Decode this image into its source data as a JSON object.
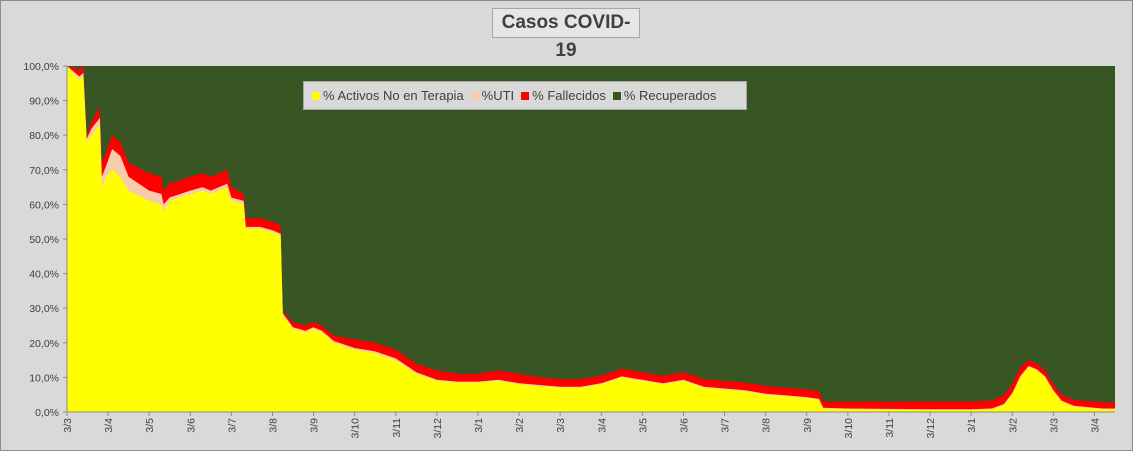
{
  "chart_data": {
    "type": "area",
    "stacked_percent": true,
    "title": "Casos  COVID-19",
    "y_ticks": [
      "0,0%",
      "10,0%",
      "20,0%",
      "30,0%",
      "40,0%",
      "50,0%",
      "60,0%",
      "70,0%",
      "80,0%",
      "90,0%",
      "100,0%"
    ],
    "ylim": [
      0,
      100
    ],
    "x_ticks": [
      "3/3",
      "3/4",
      "3/5",
      "3/6",
      "3/7",
      "3/8",
      "3/9",
      "3/10",
      "3/11",
      "3/12",
      "3/1",
      "3/2",
      "3/3",
      "3/4",
      "3/5",
      "3/6",
      "3/7",
      "3/8",
      "3/9",
      "3/10",
      "3/11",
      "3/12",
      "3/1",
      "3/2",
      "3/3",
      "3/4"
    ],
    "legend_position": "top-center",
    "series": [
      {
        "name": "% Activos No en Terapia",
        "color": "#ffff00",
        "points": [
          [
            0,
            100
          ],
          [
            0.3,
            96
          ],
          [
            0.4,
            97
          ],
          [
            0.48,
            78
          ],
          [
            0.6,
            80
          ],
          [
            0.8,
            83
          ],
          [
            0.85,
            65
          ],
          [
            0.95,
            68
          ],
          [
            1.1,
            70
          ],
          [
            1.3,
            68
          ],
          [
            1.5,
            64
          ],
          [
            2,
            61
          ],
          [
            2.3,
            60
          ],
          [
            2.35,
            58
          ],
          [
            2.5,
            61
          ],
          [
            3,
            63
          ],
          [
            3.3,
            64
          ],
          [
            3.5,
            63
          ],
          [
            3.7,
            64
          ],
          [
            3.9,
            65
          ],
          [
            4,
            61
          ],
          [
            4.3,
            60
          ],
          [
            4.35,
            53
          ],
          [
            4.7,
            53
          ],
          [
            5,
            52
          ],
          [
            5.2,
            51
          ],
          [
            5.25,
            28
          ],
          [
            5.5,
            24
          ],
          [
            5.8,
            23
          ],
          [
            6,
            24
          ],
          [
            6.2,
            23
          ],
          [
            6.5,
            20
          ],
          [
            7,
            18
          ],
          [
            7.5,
            17
          ],
          [
            8,
            15
          ],
          [
            8.5,
            11
          ],
          [
            9,
            9
          ],
          [
            9.5,
            8.5
          ],
          [
            10,
            8.5
          ],
          [
            10.5,
            9
          ],
          [
            11,
            8
          ],
          [
            11.5,
            7.5
          ],
          [
            12,
            7
          ],
          [
            12.5,
            7
          ],
          [
            13,
            8
          ],
          [
            13.5,
            10
          ],
          [
            14,
            9
          ],
          [
            14.5,
            8
          ],
          [
            15,
            9
          ],
          [
            15.5,
            7
          ],
          [
            16,
            6.5
          ],
          [
            16.5,
            6
          ],
          [
            17,
            5
          ],
          [
            17.5,
            4.5
          ],
          [
            18,
            4
          ],
          [
            18.3,
            3.5
          ],
          [
            18.4,
            1
          ],
          [
            19,
            0.8
          ],
          [
            20,
            0.7
          ],
          [
            21,
            0.6
          ],
          [
            22,
            0.6
          ],
          [
            22.5,
            0.8
          ],
          [
            22.8,
            2
          ],
          [
            23,
            5
          ],
          [
            23.2,
            10
          ],
          [
            23.4,
            13
          ],
          [
            23.6,
            12
          ],
          [
            23.8,
            10
          ],
          [
            24,
            6
          ],
          [
            24.2,
            3
          ],
          [
            24.5,
            1.5
          ],
          [
            25,
            1
          ],
          [
            25.5,
            0.8
          ],
          [
            25.2,
            0.8
          ]
        ]
      },
      {
        "name": "%UTI",
        "color": "#f8cbad",
        "points": [
          [
            0,
            100
          ],
          [
            0.3,
            97
          ],
          [
            0.4,
            98
          ],
          [
            0.48,
            79
          ],
          [
            0.6,
            82
          ],
          [
            0.8,
            85
          ],
          [
            0.85,
            68
          ],
          [
            0.95,
            71
          ],
          [
            1.1,
            76
          ],
          [
            1.3,
            74
          ],
          [
            1.5,
            68
          ],
          [
            2,
            64
          ],
          [
            2.3,
            63
          ],
          [
            2.35,
            60
          ],
          [
            2.5,
            62
          ],
          [
            3,
            64
          ],
          [
            3.3,
            65
          ],
          [
            3.5,
            64
          ],
          [
            3.7,
            65
          ],
          [
            3.9,
            66
          ],
          [
            4,
            62
          ],
          [
            4.3,
            61
          ],
          [
            4.35,
            53.5
          ],
          [
            4.7,
            53.5
          ],
          [
            5,
            52.5
          ],
          [
            5.2,
            51.5
          ],
          [
            5.25,
            28.5
          ],
          [
            5.5,
            24.5
          ],
          [
            5.8,
            23.5
          ],
          [
            6,
            24.5
          ],
          [
            6.2,
            23.5
          ],
          [
            6.5,
            20.5
          ],
          [
            7,
            18.5
          ],
          [
            7.5,
            17.5
          ],
          [
            8,
            15.5
          ],
          [
            8.5,
            11.5
          ],
          [
            9,
            9.3
          ],
          [
            9.5,
            8.8
          ],
          [
            10,
            8.8
          ],
          [
            10.5,
            9.3
          ],
          [
            11,
            8.3
          ],
          [
            11.5,
            7.8
          ],
          [
            12,
            7.3
          ],
          [
            12.5,
            7.3
          ],
          [
            13,
            8.3
          ],
          [
            13.5,
            10.3
          ],
          [
            14,
            9.3
          ],
          [
            14.5,
            8.3
          ],
          [
            15,
            9.3
          ],
          [
            15.5,
            7.3
          ],
          [
            16,
            6.8
          ],
          [
            16.5,
            6.3
          ],
          [
            17,
            5.3
          ],
          [
            17.5,
            4.8
          ],
          [
            18,
            4.3
          ],
          [
            18.3,
            3.8
          ],
          [
            18.4,
            1.2
          ],
          [
            19,
            1
          ],
          [
            20,
            0.9
          ],
          [
            21,
            0.8
          ],
          [
            22,
            0.8
          ],
          [
            22.5,
            1
          ],
          [
            22.8,
            2.3
          ],
          [
            23,
            5.5
          ],
          [
            23.2,
            10.5
          ],
          [
            23.4,
            13.3
          ],
          [
            23.6,
            12.3
          ],
          [
            23.8,
            10.3
          ],
          [
            24,
            6.3
          ],
          [
            24.2,
            3.3
          ],
          [
            24.5,
            1.8
          ],
          [
            25,
            1.2
          ],
          [
            25.5,
            1
          ],
          [
            25.2,
            1
          ]
        ]
      },
      {
        "name": "% Fallecidos",
        "color": "#ff0000",
        "points": [
          [
            0,
            100
          ],
          [
            0.3,
            99
          ],
          [
            0.4,
            100
          ],
          [
            0.48,
            80
          ],
          [
            0.6,
            84
          ],
          [
            0.8,
            88
          ],
          [
            0.85,
            72
          ],
          [
            0.95,
            75
          ],
          [
            1.1,
            80
          ],
          [
            1.3,
            78
          ],
          [
            1.5,
            72
          ],
          [
            2,
            69
          ],
          [
            2.3,
            68
          ],
          [
            2.35,
            64
          ],
          [
            2.5,
            66
          ],
          [
            3,
            68
          ],
          [
            3.3,
            69
          ],
          [
            3.5,
            68
          ],
          [
            3.7,
            69
          ],
          [
            3.9,
            70
          ],
          [
            4,
            65
          ],
          [
            4.3,
            63
          ],
          [
            4.35,
            56
          ],
          [
            4.7,
            56
          ],
          [
            5,
            55
          ],
          [
            5.2,
            54
          ],
          [
            5.25,
            29
          ],
          [
            5.5,
            26
          ],
          [
            5.8,
            25
          ],
          [
            6,
            26
          ],
          [
            6.2,
            25
          ],
          [
            6.5,
            22
          ],
          [
            7,
            21
          ],
          [
            7.5,
            20
          ],
          [
            8,
            18
          ],
          [
            8.5,
            14
          ],
          [
            9,
            12
          ],
          [
            9.5,
            11
          ],
          [
            10,
            11
          ],
          [
            10.5,
            12
          ],
          [
            11,
            11
          ],
          [
            11.5,
            10
          ],
          [
            12,
            9.5
          ],
          [
            12.5,
            9.5
          ],
          [
            13,
            10.5
          ],
          [
            13.5,
            12.5
          ],
          [
            14,
            11.5
          ],
          [
            14.5,
            10.5
          ],
          [
            15,
            11.5
          ],
          [
            15.5,
            9.5
          ],
          [
            16,
            9
          ],
          [
            16.5,
            8.5
          ],
          [
            17,
            7.5
          ],
          [
            17.5,
            7
          ],
          [
            18,
            6.5
          ],
          [
            18.3,
            6
          ],
          [
            18.4,
            3
          ],
          [
            19,
            3
          ],
          [
            20,
            3
          ],
          [
            21,
            3
          ],
          [
            22,
            3
          ],
          [
            22.5,
            3.3
          ],
          [
            22.8,
            5
          ],
          [
            23,
            8
          ],
          [
            23.2,
            13
          ],
          [
            23.4,
            15
          ],
          [
            23.6,
            14
          ],
          [
            23.8,
            12
          ],
          [
            24,
            8
          ],
          [
            24.2,
            5
          ],
          [
            24.5,
            3.5
          ],
          [
            25,
            3
          ],
          [
            25.5,
            2.8
          ],
          [
            25.2,
            2.8
          ]
        ]
      },
      {
        "name": "% Recuperados",
        "color": "#375623",
        "points": [
          [
            0,
            100
          ],
          [
            25.5,
            100
          ]
        ]
      }
    ]
  }
}
